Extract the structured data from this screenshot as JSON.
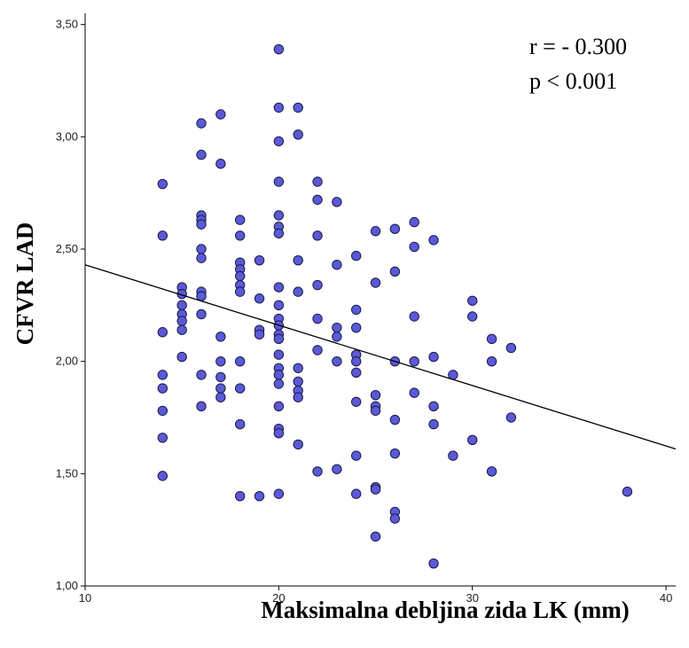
{
  "chart_data": {
    "type": "scatter",
    "xlabel": "Maksimalna debljina zida LK (mm)",
    "ylabel": "CFVR  LAD",
    "xlim": [
      10,
      40.5
    ],
    "ylim": [
      1.0,
      3.55
    ],
    "x_ticks": [
      10,
      20,
      30,
      40
    ],
    "x_tick_labels": [
      "10",
      "20",
      "30",
      "40"
    ],
    "y_ticks": [
      1.0,
      1.5,
      2.0,
      2.5,
      3.0,
      3.5
    ],
    "y_tick_labels": [
      "1,00",
      "1,50",
      "2,00",
      "2,50",
      "3,00",
      "3,50"
    ],
    "grid": false,
    "annotations": [
      "r = - 0.300",
      "p < 0.001"
    ],
    "marker_color": "#5a5ad6",
    "marker_edge_color": "#1a1a4a",
    "fit_line": {
      "x": [
        10,
        40.5
      ],
      "y": [
        2.43,
        1.61
      ],
      "color": "#000000"
    },
    "points": [
      {
        "x": 14,
        "y": 2.79
      },
      {
        "x": 14,
        "y": 2.56
      },
      {
        "x": 14,
        "y": 2.13
      },
      {
        "x": 14,
        "y": 1.94
      },
      {
        "x": 14,
        "y": 1.88
      },
      {
        "x": 14,
        "y": 1.78
      },
      {
        "x": 14,
        "y": 1.66
      },
      {
        "x": 14,
        "y": 1.49
      },
      {
        "x": 15,
        "y": 2.33
      },
      {
        "x": 15,
        "y": 2.3
      },
      {
        "x": 15,
        "y": 2.25
      },
      {
        "x": 15,
        "y": 2.21
      },
      {
        "x": 15,
        "y": 2.18
      },
      {
        "x": 15,
        "y": 2.14
      },
      {
        "x": 15,
        "y": 2.02
      },
      {
        "x": 16,
        "y": 3.06
      },
      {
        "x": 16,
        "y": 2.92
      },
      {
        "x": 16,
        "y": 2.65
      },
      {
        "x": 16,
        "y": 2.63
      },
      {
        "x": 16,
        "y": 2.61
      },
      {
        "x": 16,
        "y": 2.5
      },
      {
        "x": 16,
        "y": 2.46
      },
      {
        "x": 16,
        "y": 2.31
      },
      {
        "x": 16,
        "y": 2.29
      },
      {
        "x": 16,
        "y": 2.21
      },
      {
        "x": 16,
        "y": 1.94
      },
      {
        "x": 16,
        "y": 1.8
      },
      {
        "x": 17,
        "y": 3.1
      },
      {
        "x": 17,
        "y": 2.88
      },
      {
        "x": 17,
        "y": 2.11
      },
      {
        "x": 17,
        "y": 2.0
      },
      {
        "x": 17,
        "y": 1.93
      },
      {
        "x": 17,
        "y": 1.88
      },
      {
        "x": 17,
        "y": 1.84
      },
      {
        "x": 18,
        "y": 2.63
      },
      {
        "x": 18,
        "y": 2.56
      },
      {
        "x": 18,
        "y": 2.44
      },
      {
        "x": 18,
        "y": 2.41
      },
      {
        "x": 18,
        "y": 2.38
      },
      {
        "x": 18,
        "y": 2.34
      },
      {
        "x": 18,
        "y": 2.31
      },
      {
        "x": 18,
        "y": 2.0
      },
      {
        "x": 18,
        "y": 1.88
      },
      {
        "x": 18,
        "y": 1.72
      },
      {
        "x": 18,
        "y": 1.4
      },
      {
        "x": 19,
        "y": 2.45
      },
      {
        "x": 19,
        "y": 2.28
      },
      {
        "x": 19,
        "y": 2.14
      },
      {
        "x": 19,
        "y": 2.12
      },
      {
        "x": 19,
        "y": 1.4
      },
      {
        "x": 20,
        "y": 3.39
      },
      {
        "x": 20,
        "y": 3.13
      },
      {
        "x": 20,
        "y": 2.98
      },
      {
        "x": 20,
        "y": 2.8
      },
      {
        "x": 20,
        "y": 2.65
      },
      {
        "x": 20,
        "y": 2.6
      },
      {
        "x": 20,
        "y": 2.57
      },
      {
        "x": 20,
        "y": 2.33
      },
      {
        "x": 20,
        "y": 2.25
      },
      {
        "x": 20,
        "y": 2.19
      },
      {
        "x": 20,
        "y": 2.16
      },
      {
        "x": 20,
        "y": 2.12
      },
      {
        "x": 20,
        "y": 2.1
      },
      {
        "x": 20,
        "y": 2.03
      },
      {
        "x": 20,
        "y": 1.97
      },
      {
        "x": 20,
        "y": 1.94
      },
      {
        "x": 20,
        "y": 1.9
      },
      {
        "x": 20,
        "y": 1.8
      },
      {
        "x": 20,
        "y": 1.7
      },
      {
        "x": 20,
        "y": 1.68
      },
      {
        "x": 20,
        "y": 1.41
      },
      {
        "x": 21,
        "y": 3.13
      },
      {
        "x": 21,
        "y": 3.01
      },
      {
        "x": 21,
        "y": 2.45
      },
      {
        "x": 21,
        "y": 2.31
      },
      {
        "x": 21,
        "y": 1.97
      },
      {
        "x": 21,
        "y": 1.91
      },
      {
        "x": 21,
        "y": 1.87
      },
      {
        "x": 21,
        "y": 1.84
      },
      {
        "x": 21,
        "y": 1.63
      },
      {
        "x": 22,
        "y": 2.8
      },
      {
        "x": 22,
        "y": 2.72
      },
      {
        "x": 22,
        "y": 2.56
      },
      {
        "x": 22,
        "y": 2.34
      },
      {
        "x": 22,
        "y": 2.19
      },
      {
        "x": 22,
        "y": 2.05
      },
      {
        "x": 22,
        "y": 1.51
      },
      {
        "x": 23,
        "y": 2.71
      },
      {
        "x": 23,
        "y": 2.43
      },
      {
        "x": 23,
        "y": 2.15
      },
      {
        "x": 23,
        "y": 2.11
      },
      {
        "x": 23,
        "y": 2.0
      },
      {
        "x": 23,
        "y": 1.52
      },
      {
        "x": 24,
        "y": 2.47
      },
      {
        "x": 24,
        "y": 2.23
      },
      {
        "x": 24,
        "y": 2.15
      },
      {
        "x": 24,
        "y": 2.03
      },
      {
        "x": 24,
        "y": 2.0
      },
      {
        "x": 24,
        "y": 1.95
      },
      {
        "x": 24,
        "y": 1.82
      },
      {
        "x": 24,
        "y": 1.58
      },
      {
        "x": 24,
        "y": 1.41
      },
      {
        "x": 25,
        "y": 2.58
      },
      {
        "x": 25,
        "y": 2.35
      },
      {
        "x": 25,
        "y": 1.85
      },
      {
        "x": 25,
        "y": 1.8
      },
      {
        "x": 25,
        "y": 1.78
      },
      {
        "x": 25,
        "y": 1.44
      },
      {
        "x": 25,
        "y": 1.43
      },
      {
        "x": 25,
        "y": 1.22
      },
      {
        "x": 26,
        "y": 2.59
      },
      {
        "x": 26,
        "y": 2.4
      },
      {
        "x": 26,
        "y": 2.0
      },
      {
        "x": 26,
        "y": 1.74
      },
      {
        "x": 26,
        "y": 1.59
      },
      {
        "x": 26,
        "y": 1.33
      },
      {
        "x": 26,
        "y": 1.3
      },
      {
        "x": 27,
        "y": 2.62
      },
      {
        "x": 27,
        "y": 2.51
      },
      {
        "x": 27,
        "y": 2.2
      },
      {
        "x": 27,
        "y": 2.0
      },
      {
        "x": 27,
        "y": 1.86
      },
      {
        "x": 28,
        "y": 2.54
      },
      {
        "x": 28,
        "y": 2.02
      },
      {
        "x": 28,
        "y": 1.8
      },
      {
        "x": 28,
        "y": 1.72
      },
      {
        "x": 28,
        "y": 1.1
      },
      {
        "x": 29,
        "y": 1.94
      },
      {
        "x": 29,
        "y": 1.58
      },
      {
        "x": 30,
        "y": 2.27
      },
      {
        "x": 30,
        "y": 2.2
      },
      {
        "x": 30,
        "y": 1.65
      },
      {
        "x": 31,
        "y": 2.1
      },
      {
        "x": 31,
        "y": 2.0
      },
      {
        "x": 31,
        "y": 1.51
      },
      {
        "x": 32,
        "y": 2.06
      },
      {
        "x": 32,
        "y": 1.75
      },
      {
        "x": 38,
        "y": 1.42
      }
    ]
  }
}
